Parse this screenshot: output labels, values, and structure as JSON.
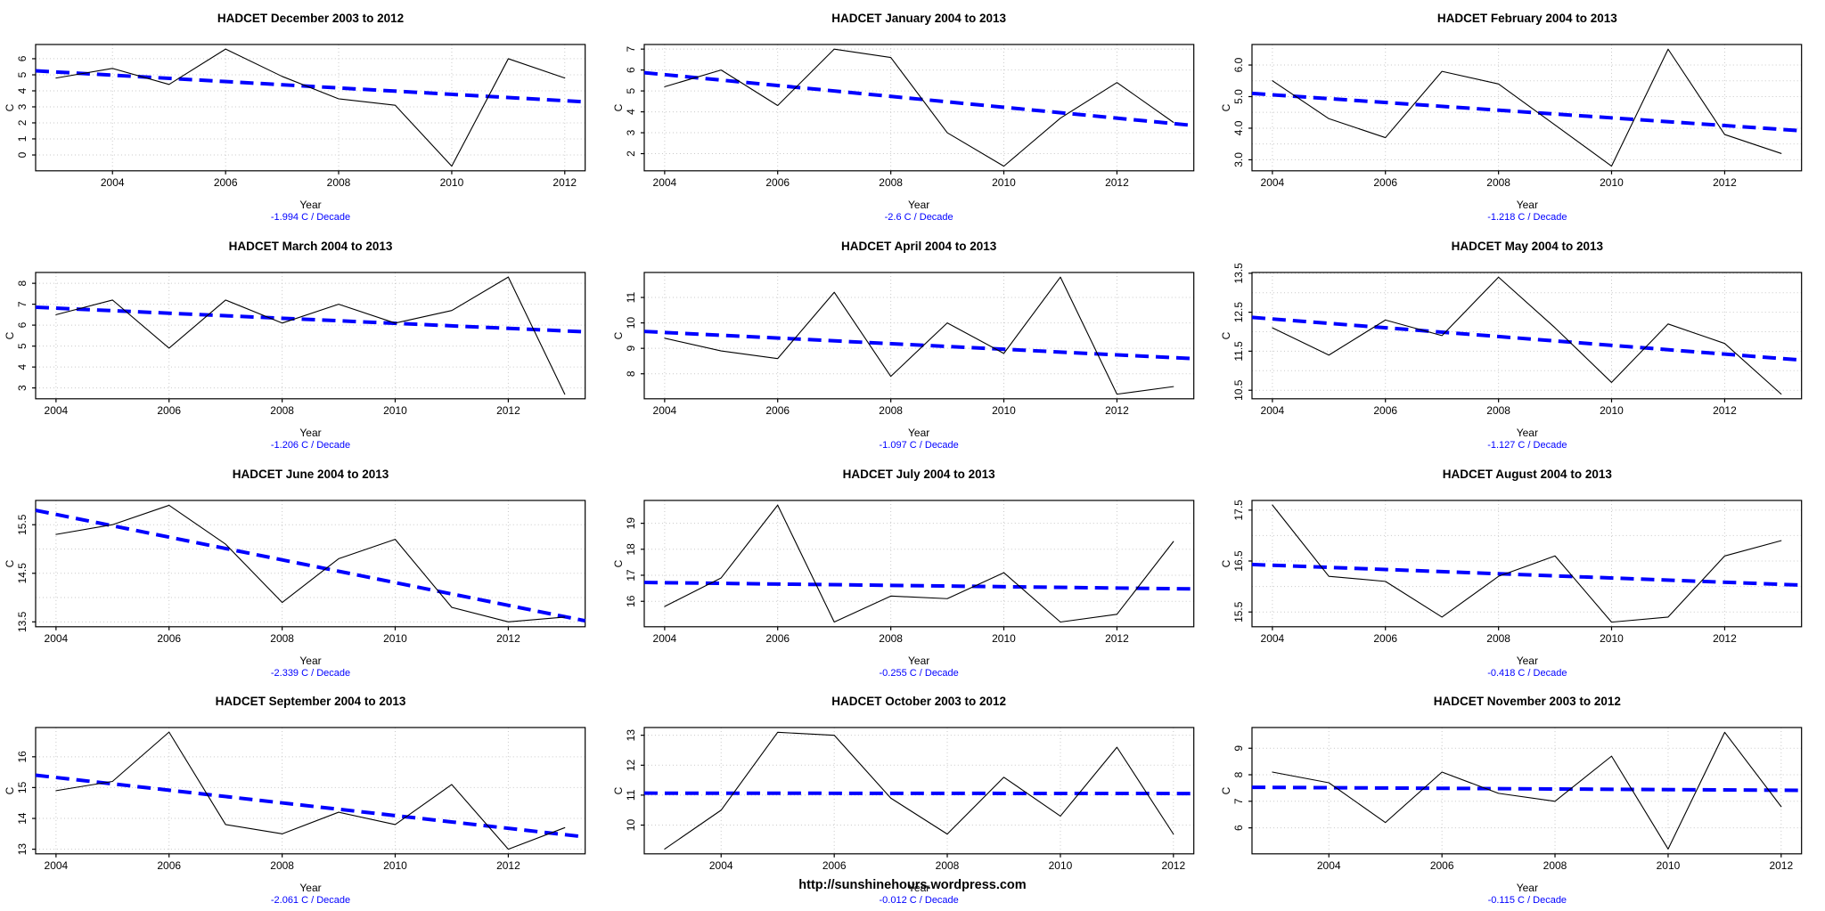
{
  "page": {
    "footer_url": "http://sunshinehours.wordpress.com"
  },
  "colors": {
    "trend_blue": "#0000ff",
    "series_black": "#000000",
    "grid_gray": "#c8c8c8",
    "background": "#ffffff"
  },
  "chart_data": [
    {
      "type": "line",
      "month": "December",
      "title": "HADCET December 2003 to 2012",
      "xlabel": "Year",
      "ylabel": "C",
      "trend_label": "-1.994 C / Decade",
      "trend_slope_per_decade": -1.994,
      "x": [
        2003,
        2004,
        2005,
        2006,
        2007,
        2008,
        2009,
        2010,
        2011,
        2012
      ],
      "values": [
        4.8,
        5.4,
        4.4,
        6.6,
        4.9,
        3.5,
        3.1,
        -0.7,
        6.0,
        4.8
      ],
      "xticks": [
        2004,
        2006,
        2008,
        2010,
        2012
      ],
      "xlim": [
        2002.64,
        2012.36
      ],
      "ylim": [
        -0.99,
        6.89
      ],
      "yticks": {
        "values": [
          0,
          1,
          2,
          3,
          4,
          5,
          6
        ],
        "labels": [
          "0",
          "1",
          "2",
          "3",
          "4",
          "5",
          "6"
        ]
      },
      "ygrid": [
        0,
        1,
        2,
        3,
        4,
        5,
        6
      ],
      "legend": "none",
      "grid_on": true
    },
    {
      "type": "line",
      "month": "January",
      "title": "HADCET January 2004 to 2013",
      "xlabel": "Year",
      "ylabel": "C",
      "trend_label": "-2.6 C / Decade",
      "trend_slope_per_decade": -2.6,
      "x": [
        2004,
        2005,
        2006,
        2007,
        2008,
        2009,
        2010,
        2011,
        2012,
        2013
      ],
      "values": [
        5.2,
        6.0,
        4.3,
        7.0,
        6.6,
        3.0,
        1.4,
        3.7,
        5.4,
        3.5
      ],
      "xticks": [
        2004,
        2006,
        2008,
        2010,
        2012
      ],
      "xlim": [
        2003.64,
        2013.36
      ],
      "ylim": [
        1.18,
        7.22
      ],
      "yticks": {
        "values": [
          2,
          3,
          4,
          5,
          6,
          7
        ],
        "labels": [
          "2",
          "3",
          "4",
          "5",
          "6",
          "7"
        ]
      },
      "ygrid": [
        2,
        3,
        4,
        5,
        6,
        7
      ],
      "legend": "none",
      "grid_on": true
    },
    {
      "type": "line",
      "month": "February",
      "title": "HADCET February 2004 to 2013",
      "xlabel": "Year",
      "ylabel": "C",
      "trend_label": "-1.218 C / Decade",
      "trend_slope_per_decade": -1.218,
      "x": [
        2004,
        2005,
        2006,
        2007,
        2008,
        2009,
        2010,
        2011,
        2012,
        2013
      ],
      "values": [
        5.5,
        4.3,
        3.7,
        5.8,
        5.4,
        4.1,
        2.8,
        6.5,
        3.8,
        3.2
      ],
      "xticks": [
        2004,
        2006,
        2008,
        2010,
        2012
      ],
      "xlim": [
        2003.64,
        2013.36
      ],
      "ylim": [
        2.65,
        6.65
      ],
      "yticks": {
        "values": [
          3,
          4,
          5,
          6
        ],
        "labels": [
          "3.0",
          "4.0",
          "5.0",
          "6.0"
        ]
      },
      "ygrid": [
        3,
        3.5,
        4,
        4.5,
        5,
        5.5,
        6
      ],
      "legend": "none",
      "grid_on": true
    },
    {
      "type": "line",
      "month": "March",
      "title": "HADCET March 2004 to 2013",
      "xlabel": "Year",
      "ylabel": "C",
      "trend_label": "-1.206 C / Decade",
      "trend_slope_per_decade": -1.206,
      "x": [
        2004,
        2005,
        2006,
        2007,
        2008,
        2009,
        2010,
        2011,
        2012,
        2013
      ],
      "values": [
        6.5,
        7.2,
        4.9,
        7.2,
        6.1,
        7.0,
        6.1,
        6.7,
        8.3,
        2.7
      ],
      "xticks": [
        2004,
        2006,
        2008,
        2010,
        2012
      ],
      "xlim": [
        2003.64,
        2013.36
      ],
      "ylim": [
        2.48,
        8.52
      ],
      "yticks": {
        "values": [
          3,
          4,
          5,
          6,
          7,
          8
        ],
        "labels": [
          "3",
          "4",
          "5",
          "6",
          "7",
          "8"
        ]
      },
      "ygrid": [
        3,
        4,
        5,
        6,
        7,
        8
      ],
      "legend": "none",
      "grid_on": true
    },
    {
      "type": "line",
      "month": "April",
      "title": "HADCET April 2004 to 2013",
      "xlabel": "Year",
      "ylabel": "C",
      "trend_label": "-1.097 C / Decade",
      "trend_slope_per_decade": -1.097,
      "x": [
        2004,
        2005,
        2006,
        2007,
        2008,
        2009,
        2010,
        2011,
        2012,
        2013
      ],
      "values": [
        9.4,
        8.9,
        8.6,
        11.2,
        7.9,
        10.0,
        8.8,
        11.8,
        7.2,
        7.5
      ],
      "xticks": [
        2004,
        2006,
        2008,
        2010,
        2012
      ],
      "xlim": [
        2003.64,
        2013.36
      ],
      "ylim": [
        7.02,
        11.98
      ],
      "yticks": {
        "values": [
          8,
          9,
          10,
          11
        ],
        "labels": [
          "8",
          "9",
          "10",
          "11"
        ]
      },
      "ygrid": [
        8,
        9,
        10,
        11
      ],
      "legend": "none",
      "grid_on": true
    },
    {
      "type": "line",
      "month": "May",
      "title": "HADCET May 2004 to 2013",
      "xlabel": "Year",
      "ylabel": "C",
      "trend_label": "-1.127 C / Decade",
      "trend_slope_per_decade": -1.127,
      "x": [
        2004,
        2005,
        2006,
        2007,
        2008,
        2009,
        2010,
        2011,
        2012,
        2013
      ],
      "values": [
        12.1,
        11.4,
        12.3,
        11.9,
        13.4,
        12.1,
        10.7,
        12.2,
        11.7,
        10.4
      ],
      "xticks": [
        2004,
        2006,
        2008,
        2010,
        2012
      ],
      "xlim": [
        2003.64,
        2013.36
      ],
      "ylim": [
        10.28,
        13.52
      ],
      "yticks": {
        "values": [
          10.5,
          11.5,
          12.5,
          13.5
        ],
        "labels": [
          "10.5",
          "11.5",
          "12.5",
          "13.5"
        ]
      },
      "ygrid": [
        10.5,
        11,
        11.5,
        12,
        12.5,
        13,
        13.5
      ],
      "legend": "none",
      "grid_on": true
    },
    {
      "type": "line",
      "month": "June",
      "title": "HADCET June 2004 to 2013",
      "xlabel": "Year",
      "ylabel": "C",
      "trend_label": "-2.339 C / Decade",
      "trend_slope_per_decade": -2.339,
      "x": [
        2004,
        2005,
        2006,
        2007,
        2008,
        2009,
        2010,
        2011,
        2012,
        2013
      ],
      "values": [
        15.3,
        15.5,
        15.9,
        15.1,
        13.9,
        14.8,
        15.2,
        13.8,
        13.5,
        13.6
      ],
      "xticks": [
        2004,
        2006,
        2008,
        2010,
        2012
      ],
      "xlim": [
        2003.64,
        2013.36
      ],
      "ylim": [
        13.4,
        16.0
      ],
      "yticks": {
        "values": [
          13.5,
          14.5,
          15.5
        ],
        "labels": [
          "13.5",
          "14.5",
          "15.5"
        ]
      },
      "ygrid": [
        13.5,
        14,
        14.5,
        15,
        15.5
      ],
      "legend": "none",
      "grid_on": true
    },
    {
      "type": "line",
      "month": "July",
      "title": "HADCET July 2004 to 2013",
      "xlabel": "Year",
      "ylabel": "C",
      "trend_label": "-0.255 C / Decade",
      "trend_slope_per_decade": -0.255,
      "x": [
        2004,
        2005,
        2006,
        2007,
        2008,
        2009,
        2010,
        2011,
        2012,
        2013
      ],
      "values": [
        15.8,
        16.9,
        19.7,
        15.2,
        16.2,
        16.1,
        17.1,
        15.2,
        15.5,
        18.3
      ],
      "xticks": [
        2004,
        2006,
        2008,
        2010,
        2012
      ],
      "xlim": [
        2003.64,
        2013.36
      ],
      "ylim": [
        15.02,
        19.88
      ],
      "yticks": {
        "values": [
          16,
          17,
          18,
          19
        ],
        "labels": [
          "16",
          "17",
          "18",
          "19"
        ]
      },
      "ygrid": [
        16,
        17,
        18,
        19
      ],
      "legend": "none",
      "grid_on": true
    },
    {
      "type": "line",
      "month": "August",
      "title": "HADCET August 2004 to 2013",
      "xlabel": "Year",
      "ylabel": "C",
      "trend_label": "-0.418 C / Decade",
      "trend_slope_per_decade": -0.418,
      "x": [
        2004,
        2005,
        2006,
        2007,
        2008,
        2009,
        2010,
        2011,
        2012,
        2013
      ],
      "values": [
        17.6,
        16.2,
        16.1,
        15.4,
        16.2,
        16.6,
        15.3,
        15.4,
        16.6,
        16.9
      ],
      "xticks": [
        2004,
        2006,
        2008,
        2010,
        2012
      ],
      "xlim": [
        2003.64,
        2013.36
      ],
      "ylim": [
        15.21,
        17.69
      ],
      "yticks": {
        "values": [
          15.5,
          16.5,
          17.5
        ],
        "labels": [
          "15.5",
          "16.5",
          "17.5"
        ]
      },
      "ygrid": [
        15.5,
        16,
        16.5,
        17,
        17.5
      ],
      "legend": "none",
      "grid_on": true
    },
    {
      "type": "line",
      "month": "September",
      "title": "HADCET September 2004 to 2013",
      "xlabel": "Year",
      "ylabel": "C",
      "trend_label": "-2.061 C / Decade",
      "trend_slope_per_decade": -2.061,
      "x": [
        2004,
        2005,
        2006,
        2007,
        2008,
        2009,
        2010,
        2011,
        2012,
        2013
      ],
      "values": [
        14.9,
        15.2,
        16.8,
        13.8,
        13.5,
        14.2,
        13.8,
        15.1,
        13.0,
        13.7
      ],
      "xticks": [
        2004,
        2006,
        2008,
        2010,
        2012
      ],
      "xlim": [
        2003.64,
        2013.36
      ],
      "ylim": [
        12.85,
        16.95
      ],
      "yticks": {
        "values": [
          13,
          14,
          15,
          16
        ],
        "labels": [
          "13",
          "14",
          "15",
          "16"
        ]
      },
      "ygrid": [
        13,
        14,
        15,
        16
      ],
      "legend": "none",
      "grid_on": true
    },
    {
      "type": "line",
      "month": "October",
      "title": "HADCET October 2003 to 2012",
      "xlabel": "Year",
      "ylabel": "C",
      "trend_label": "-0.012 C / Decade",
      "trend_slope_per_decade": -0.012,
      "x": [
        2003,
        2004,
        2005,
        2006,
        2007,
        2008,
        2009,
        2010,
        2011,
        2012
      ],
      "values": [
        9.2,
        10.5,
        13.1,
        13.0,
        10.9,
        9.7,
        11.6,
        10.3,
        12.6,
        9.7
      ],
      "xticks": [
        2004,
        2006,
        2008,
        2010,
        2012
      ],
      "xlim": [
        2002.64,
        2012.36
      ],
      "ylim": [
        9.04,
        13.26
      ],
      "yticks": {
        "values": [
          10,
          11,
          12,
          13
        ],
        "labels": [
          "10",
          "11",
          "12",
          "13"
        ]
      },
      "ygrid": [
        10,
        11,
        12,
        13
      ],
      "legend": "none",
      "grid_on": true
    },
    {
      "type": "line",
      "month": "November",
      "title": "HADCET November 2003 to 2012",
      "xlabel": "Year",
      "ylabel": "C",
      "trend_label": "-0.115 C / Decade",
      "trend_slope_per_decade": -0.115,
      "x": [
        2003,
        2004,
        2005,
        2006,
        2007,
        2008,
        2009,
        2010,
        2011,
        2012
      ],
      "values": [
        8.1,
        7.7,
        6.2,
        8.1,
        7.3,
        7.0,
        8.7,
        5.2,
        9.6,
        6.8
      ],
      "xticks": [
        2004,
        2006,
        2008,
        2010,
        2012
      ],
      "xlim": [
        2002.64,
        2012.36
      ],
      "ylim": [
        5.02,
        9.78
      ],
      "yticks": {
        "values": [
          6,
          7,
          8,
          9
        ],
        "labels": [
          "6",
          "7",
          "8",
          "9"
        ]
      },
      "ygrid": [
        6,
        7,
        8,
        9
      ],
      "legend": "none",
      "grid_on": true
    }
  ]
}
